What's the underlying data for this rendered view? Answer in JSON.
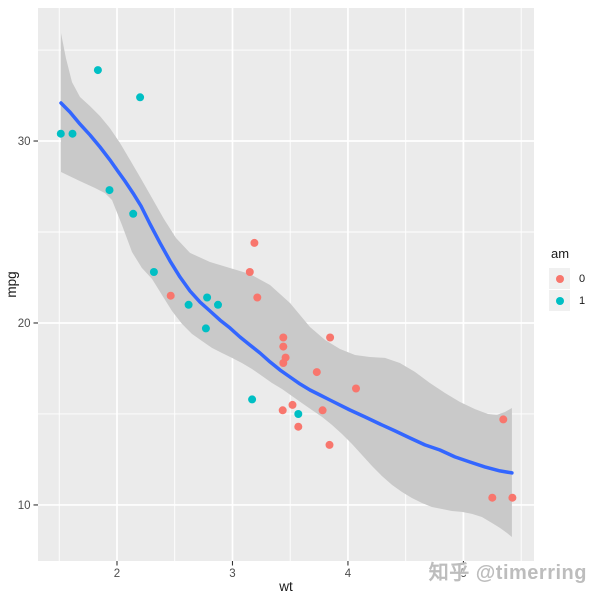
{
  "watermark": {
    "text": "知乎 @timerring"
  },
  "chart_data": {
    "type": "scatter",
    "title": "",
    "xlabel": "wt",
    "ylabel": "mpg",
    "xlim": [
      1.316,
      5.611
    ],
    "ylim": [
      6.92,
      37.31
    ],
    "x_ticks": [
      2,
      3,
      4,
      5
    ],
    "y_ticks": [
      10,
      20,
      30
    ],
    "x_minor_ticks": [
      1.5,
      2.5,
      3.5,
      4.5,
      5.5
    ],
    "y_minor_ticks": [
      15,
      25,
      35
    ],
    "grid": "on",
    "panel_bg": "#ebebeb",
    "grid_color": "#ffffff",
    "tick_label_color": "#4d4d4d",
    "axis_title_color": "#1a1a1a",
    "legend": {
      "title": "am",
      "position": "right",
      "entries": [
        {
          "label": "0",
          "color": "#F8766D"
        },
        {
          "label": "1",
          "color": "#00BFC4"
        }
      ]
    },
    "series": [
      {
        "name": "0",
        "color": "#F8766D",
        "points": [
          [
            3.215,
            21.4
          ],
          [
            3.44,
            18.7
          ],
          [
            3.46,
            18.1
          ],
          [
            3.57,
            14.3
          ],
          [
            3.19,
            24.4
          ],
          [
            3.15,
            22.8
          ],
          [
            3.44,
            19.2
          ],
          [
            3.44,
            17.8
          ],
          [
            4.07,
            16.4
          ],
          [
            3.73,
            17.3
          ],
          [
            3.78,
            15.2
          ],
          [
            5.25,
            10.4
          ],
          [
            5.424,
            10.4
          ],
          [
            5.345,
            14.7
          ],
          [
            2.465,
            21.5
          ],
          [
            3.52,
            15.5
          ],
          [
            3.435,
            15.2
          ],
          [
            3.84,
            13.3
          ],
          [
            3.845,
            19.2
          ]
        ]
      },
      {
        "name": "1",
        "color": "#00BFC4",
        "points": [
          [
            2.62,
            21.0
          ],
          [
            2.875,
            21.0
          ],
          [
            2.32,
            22.8
          ],
          [
            2.2,
            32.4
          ],
          [
            1.615,
            30.4
          ],
          [
            1.835,
            33.9
          ],
          [
            1.935,
            27.3
          ],
          [
            2.14,
            26.0
          ],
          [
            1.513,
            30.4
          ],
          [
            3.17,
            15.8
          ],
          [
            2.77,
            19.7
          ],
          [
            3.57,
            15.0
          ],
          [
            2.78,
            21.4
          ]
        ]
      }
    ],
    "smooth": {
      "color": "#3366FF",
      "points": [
        [
          1.515,
          32.09
        ],
        [
          1.593,
          31.59
        ],
        [
          1.68,
          30.93
        ],
        [
          1.766,
          30.33
        ],
        [
          1.853,
          29.67
        ],
        [
          1.939,
          28.96
        ],
        [
          2.0,
          28.41
        ],
        [
          2.069,
          27.8
        ],
        [
          2.139,
          27.14
        ],
        [
          2.208,
          26.43
        ],
        [
          2.286,
          25.44
        ],
        [
          2.372,
          24.4
        ],
        [
          2.459,
          23.41
        ],
        [
          2.545,
          22.53
        ],
        [
          2.632,
          21.76
        ],
        [
          2.719,
          21.15
        ],
        [
          2.805,
          20.66
        ],
        [
          2.892,
          20.16
        ],
        [
          2.978,
          19.73
        ],
        [
          3.065,
          19.23
        ],
        [
          3.151,
          18.79
        ],
        [
          3.238,
          18.35
        ],
        [
          3.325,
          17.86
        ],
        [
          3.411,
          17.42
        ],
        [
          3.498,
          17.03
        ],
        [
          3.584,
          16.65
        ],
        [
          3.671,
          16.32
        ],
        [
          3.758,
          16.04
        ],
        [
          3.844,
          15.77
        ],
        [
          3.931,
          15.49
        ],
        [
          4.017,
          15.22
        ],
        [
          4.147,
          14.84
        ],
        [
          4.277,
          14.45
        ],
        [
          4.407,
          14.07
        ],
        [
          4.537,
          13.68
        ],
        [
          4.666,
          13.3
        ],
        [
          4.796,
          13.02
        ],
        [
          4.926,
          12.64
        ],
        [
          5.056,
          12.36
        ],
        [
          5.186,
          12.09
        ],
        [
          5.316,
          11.87
        ],
        [
          5.42,
          11.76
        ]
      ]
    },
    "ribbon": {
      "color": "#c9c9c9",
      "upper": [
        [
          1.515,
          35.93
        ],
        [
          1.558,
          34.56
        ],
        [
          1.61,
          33.24
        ],
        [
          1.68,
          32.42
        ],
        [
          1.766,
          31.92
        ],
        [
          1.853,
          31.37
        ],
        [
          1.939,
          30.71
        ],
        [
          2.026,
          29.89
        ],
        [
          2.113,
          28.96
        ],
        [
          2.199,
          28.02
        ],
        [
          2.303,
          26.87
        ],
        [
          2.407,
          25.71
        ],
        [
          2.511,
          24.67
        ],
        [
          2.632,
          23.85
        ],
        [
          2.805,
          23.35
        ],
        [
          2.978,
          23.02
        ],
        [
          3.151,
          22.69
        ],
        [
          3.325,
          22.09
        ],
        [
          3.498,
          21.1
        ],
        [
          3.671,
          19.78
        ],
        [
          3.801,
          19.07
        ],
        [
          3.931,
          18.57
        ],
        [
          4.061,
          18.24
        ],
        [
          4.19,
          18.13
        ],
        [
          4.32,
          18.08
        ],
        [
          4.45,
          17.8
        ],
        [
          4.58,
          17.31
        ],
        [
          4.71,
          16.7
        ],
        [
          4.84,
          16.15
        ],
        [
          4.97,
          15.66
        ],
        [
          5.1,
          15.27
        ],
        [
          5.212,
          15.0
        ],
        [
          5.29,
          14.95
        ],
        [
          5.359,
          15.11
        ],
        [
          5.42,
          15.33
        ]
      ],
      "lower": [
        [
          1.515,
          28.3
        ],
        [
          1.68,
          27.8
        ],
        [
          1.81,
          27.42
        ],
        [
          1.896,
          27.14
        ],
        [
          1.957,
          26.76
        ],
        [
          2.043,
          25.38
        ],
        [
          2.13,
          23.9
        ],
        [
          2.216,
          23.02
        ],
        [
          2.303,
          22.42
        ],
        [
          2.39,
          21.54
        ],
        [
          2.476,
          20.66
        ],
        [
          2.563,
          19.95
        ],
        [
          2.649,
          19.4
        ],
        [
          2.736,
          19.01
        ],
        [
          2.822,
          18.63
        ],
        [
          2.909,
          18.35
        ],
        [
          2.996,
          18.08
        ],
        [
          3.082,
          17.8
        ],
        [
          3.169,
          17.47
        ],
        [
          3.255,
          17.09
        ],
        [
          3.342,
          16.7
        ],
        [
          3.429,
          16.37
        ],
        [
          3.515,
          15.99
        ],
        [
          3.602,
          15.6
        ],
        [
          3.688,
          15.22
        ],
        [
          3.775,
          14.84
        ],
        [
          3.861,
          14.4
        ],
        [
          3.948,
          13.9
        ],
        [
          4.035,
          13.35
        ],
        [
          4.121,
          12.75
        ],
        [
          4.208,
          12.14
        ],
        [
          4.294,
          11.59
        ],
        [
          4.381,
          11.1
        ],
        [
          4.468,
          10.71
        ],
        [
          4.554,
          10.38
        ],
        [
          4.641,
          10.11
        ],
        [
          4.727,
          9.89
        ],
        [
          4.814,
          9.78
        ],
        [
          4.9,
          9.67
        ],
        [
          4.987,
          9.62
        ],
        [
          5.074,
          9.51
        ],
        [
          5.16,
          9.34
        ],
        [
          5.247,
          9.01
        ],
        [
          5.316,
          8.74
        ],
        [
          5.377,
          8.46
        ],
        [
          5.42,
          8.24
        ]
      ]
    }
  }
}
